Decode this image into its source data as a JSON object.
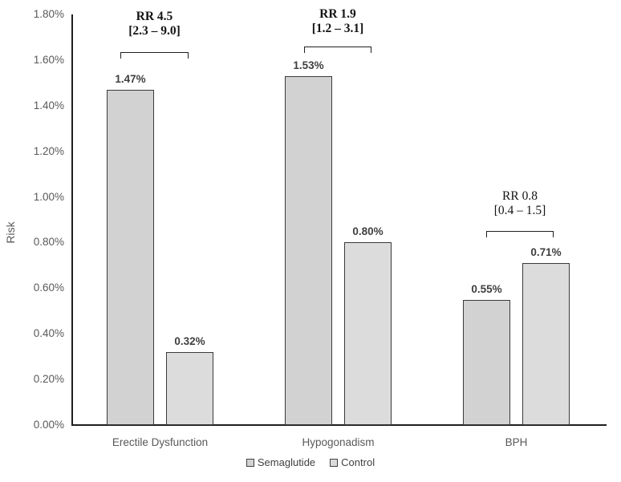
{
  "chart_data": {
    "type": "bar",
    "title": "",
    "xlabel": "",
    "ylabel": "Risk",
    "ylim": [
      0,
      1.8
    ],
    "ytick_step": 0.2,
    "ytick_labels": [
      "0.00%",
      "0.20%",
      "0.40%",
      "0.60%",
      "0.80%",
      "1.00%",
      "1.20%",
      "1.40%",
      "1.60%",
      "1.80%"
    ],
    "categories": [
      "Erectile Dysfunction",
      "Hypogonadism",
      "BPH"
    ],
    "series": [
      {
        "name": "Semaglutide",
        "values": [
          1.47,
          1.53,
          0.55
        ],
        "value_labels": [
          "1.47%",
          "1.53%",
          "0.55%"
        ],
        "color": "#d2d2d2"
      },
      {
        "name": "Control",
        "values": [
          0.32,
          0.8,
          0.71
        ],
        "value_labels": [
          "0.32%",
          "0.80%",
          "0.71%"
        ],
        "color": "#dcdcdc"
      }
    ],
    "annotations": [
      {
        "rr": "RR 4.5",
        "ci": "[2.3 – 9.0]",
        "bold": true
      },
      {
        "rr": "RR 1.9",
        "ci": "[1.2 – 3.1]",
        "bold": true
      },
      {
        "rr": "RR 0.8",
        "ci": "[0.4 – 1.5]",
        "bold": false
      }
    ],
    "legend": [
      "Semaglutide",
      "Control"
    ],
    "legend_position": "bottom",
    "grid": false,
    "colors": {
      "semaglutide_fill": "#d2d2d2",
      "control_fill": "#dcdcdc",
      "bar_border": "#3a3a3a",
      "axis_line": "#1f1f1f",
      "axis_text": "#595959",
      "value_text": "#3f3f3f",
      "annotation_text": "#141414"
    }
  }
}
